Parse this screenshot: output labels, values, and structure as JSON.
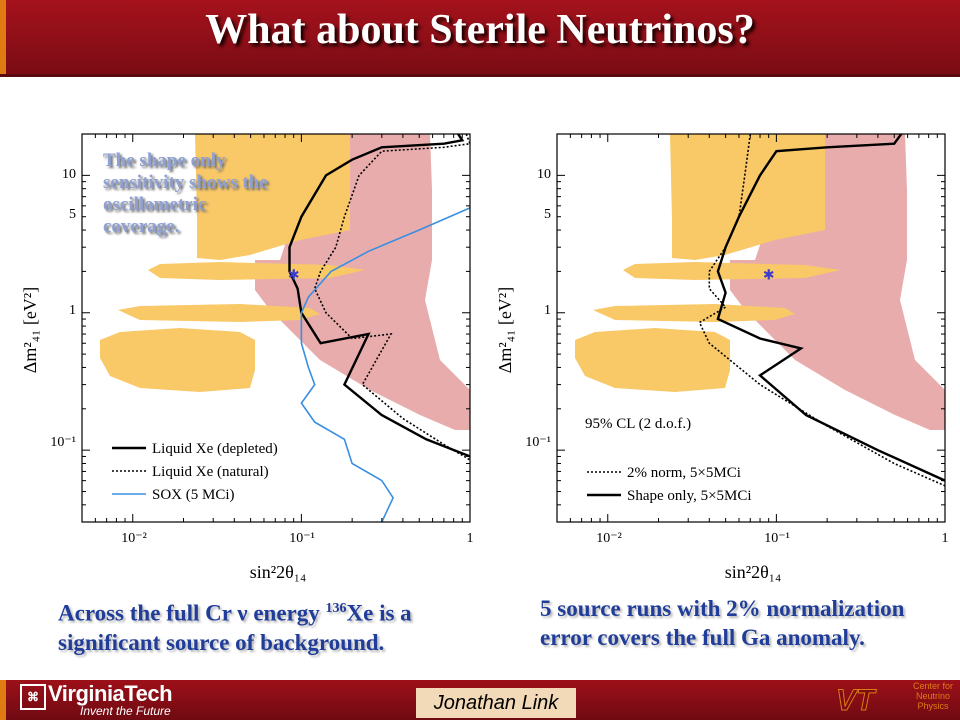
{
  "slide": {
    "title": "What about Sterile Neutrinos?",
    "note": "The shape only sensitivity shows the oscillometric coverage.",
    "caption_left": {
      "pre": "Across the full Cr ν energy ",
      "sup": "136",
      "post": "Xe is a significant source of background."
    },
    "caption_right": "5 source runs with 2% normalization error covers the full Ga anomaly.",
    "footer": {
      "org": "VirginiaTech",
      "tagline": "Invent the Future",
      "author": "Jonathan Link",
      "center": "Center for Neutrino Physics"
    }
  },
  "colors": {
    "title_bar": "#8e0f18",
    "accent": "#e07a12",
    "caption": "#1f3d99",
    "allowed_yellow": "#f9c867",
    "allowed_pink": "#e9acac",
    "sox_blue": "#3a8fe0"
  },
  "chart_data": [
    {
      "type": "line",
      "xlabel": "sin²2θ₁₄",
      "ylabel": "Δm²₄₁ [eV²]",
      "xscale": "log",
      "yscale": "log",
      "xlim": [
        0.005,
        1
      ],
      "ylim": [
        0.03,
        20
      ],
      "x_ticks": [
        "10⁻²",
        "10⁻¹",
        "1"
      ],
      "y_ticks": [
        "10⁻¹",
        "1",
        "5",
        "10"
      ],
      "legend_position": "bottom-left",
      "series": [
        {
          "name": "Liquid Xe (depleted)",
          "style": "solid",
          "points": [
            [
              0.85,
              20
            ],
            [
              0.9,
              18
            ],
            [
              0.7,
              17
            ],
            [
              0.3,
              16
            ],
            [
              0.2,
              13
            ],
            [
              0.14,
              10
            ],
            [
              0.1,
              5
            ],
            [
              0.085,
              3
            ],
            [
              0.085,
              2
            ],
            [
              0.095,
              1.5
            ],
            [
              0.1,
              1
            ],
            [
              0.13,
              0.6
            ],
            [
              0.25,
              0.7
            ],
            [
              0.18,
              0.3
            ],
            [
              0.3,
              0.18
            ],
            [
              0.55,
              0.12
            ],
            [
              1,
              0.09
            ]
          ]
        },
        {
          "name": "Liquid Xe (natural)",
          "style": "dotted",
          "points": [
            [
              0.95,
              20
            ],
            [
              1,
              17
            ],
            [
              0.7,
              16
            ],
            [
              0.3,
              15
            ],
            [
              0.22,
              10
            ],
            [
              0.18,
              5
            ],
            [
              0.16,
              3
            ],
            [
              0.13,
              2
            ],
            [
              0.12,
              1.5
            ],
            [
              0.14,
              1
            ],
            [
              0.2,
              0.65
            ],
            [
              0.34,
              0.7
            ],
            [
              0.23,
              0.3
            ],
            [
              0.4,
              0.17
            ],
            [
              0.7,
              0.11
            ],
            [
              1,
              0.085
            ]
          ]
        },
        {
          "name": "SOX (5 MCi)",
          "style": "solid",
          "points": [
            [
              1,
              5.8
            ],
            [
              0.5,
              4
            ],
            [
              0.25,
              2.8
            ],
            [
              0.15,
              2
            ],
            [
              0.11,
              1.3
            ],
            [
              0.1,
              1
            ],
            [
              0.1,
              0.6
            ],
            [
              0.11,
              0.4
            ],
            [
              0.12,
              0.3
            ],
            [
              0.1,
              0.22
            ],
            [
              0.12,
              0.16
            ],
            [
              0.18,
              0.12
            ],
            [
              0.2,
              0.08
            ],
            [
              0.3,
              0.06
            ],
            [
              0.35,
              0.045
            ],
            [
              0.3,
              0.03
            ]
          ]
        }
      ],
      "best_fit": {
        "x": 0.09,
        "y": 1.9,
        "marker": "star"
      }
    },
    {
      "type": "line",
      "xlabel": "sin²2θ₁₄",
      "ylabel": "Δm²₄₁ [eV²]",
      "xscale": "log",
      "yscale": "log",
      "xlim": [
        0.005,
        1
      ],
      "ylim": [
        0.03,
        20
      ],
      "x_ticks": [
        "10⁻²",
        "10⁻¹",
        "1"
      ],
      "y_ticks": [
        "10⁻¹",
        "1",
        "5",
        "10"
      ],
      "annotation": "95% CL (2 d.o.f.)",
      "legend_position": "bottom-left",
      "series": [
        {
          "name": "2% norm, 5×5MCi",
          "style": "dotted",
          "points": [
            [
              0.07,
              20
            ],
            [
              0.065,
              10
            ],
            [
              0.06,
              5
            ],
            [
              0.05,
              3
            ],
            [
              0.04,
              2
            ],
            [
              0.04,
              1.5
            ],
            [
              0.05,
              1.1
            ],
            [
              0.035,
              0.85
            ],
            [
              0.04,
              0.6
            ],
            [
              0.08,
              0.3
            ],
            [
              0.2,
              0.15
            ],
            [
              0.5,
              0.08
            ],
            [
              1,
              0.055
            ]
          ]
        },
        {
          "name": "Shape only, 5×5MCi",
          "style": "solid",
          "points": [
            [
              0.55,
              20
            ],
            [
              0.5,
              17
            ],
            [
              0.2,
              16
            ],
            [
              0.1,
              15
            ],
            [
              0.08,
              10
            ],
            [
              0.06,
              5
            ],
            [
              0.05,
              3
            ],
            [
              0.045,
              2
            ],
            [
              0.05,
              1.4
            ],
            [
              0.045,
              0.9
            ],
            [
              0.08,
              0.65
            ],
            [
              0.14,
              0.55
            ],
            [
              0.08,
              0.35
            ],
            [
              0.15,
              0.18
            ],
            [
              0.4,
              0.1
            ],
            [
              1,
              0.06
            ]
          ]
        }
      ],
      "best_fit": {
        "x": 0.09,
        "y": 1.9,
        "marker": "star"
      }
    }
  ]
}
